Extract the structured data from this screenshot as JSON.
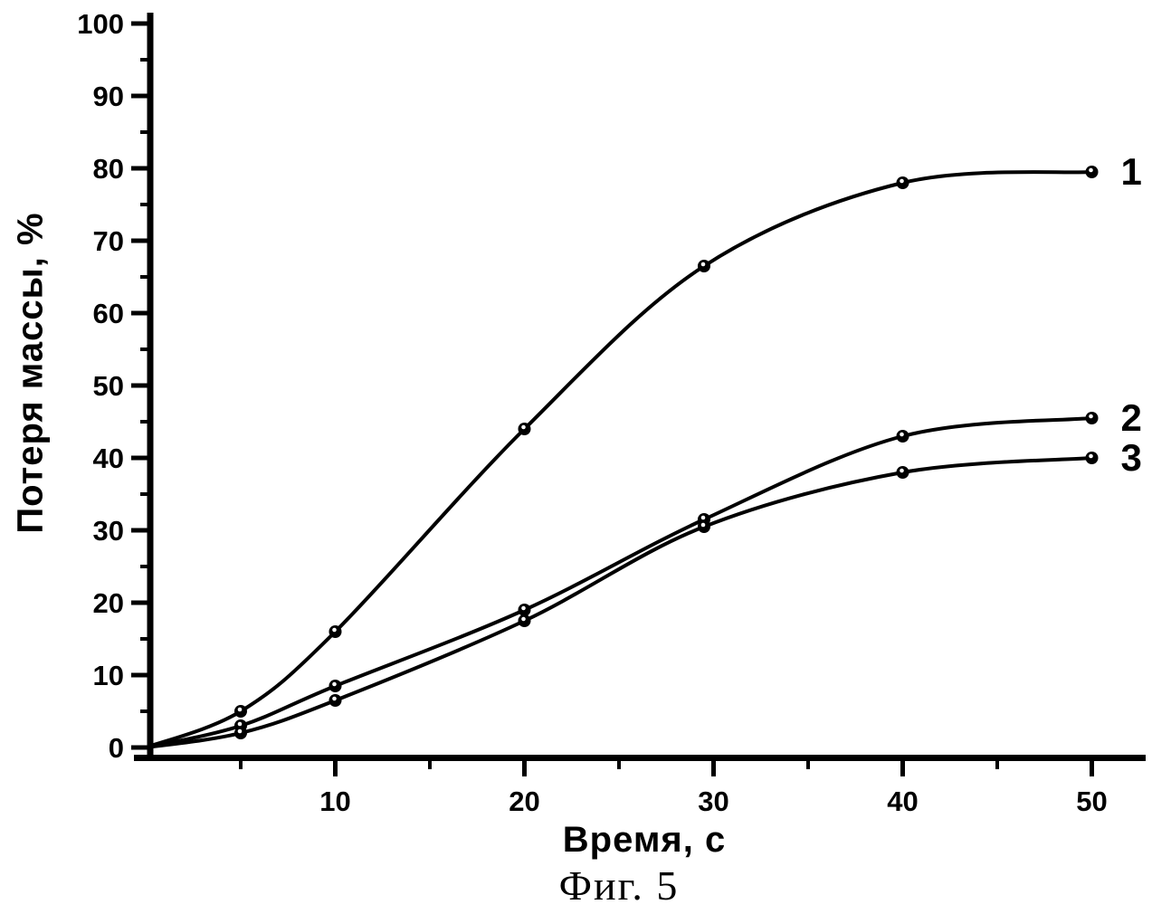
{
  "figure": {
    "caption": "Фиг. 5"
  },
  "chart_data": {
    "type": "line",
    "title": "",
    "xlabel": "Время, с",
    "ylabel": "Потеря массы, %",
    "xlim": [
      0,
      52.8
    ],
    "ylim": [
      0,
      100
    ],
    "x_major_ticks": [
      10,
      20,
      30,
      40,
      50
    ],
    "x_minor_ticks": [
      5,
      15,
      25,
      35,
      45
    ],
    "y_major_ticks": [
      0,
      10,
      20,
      30,
      40,
      50,
      60,
      70,
      80,
      90,
      100
    ],
    "y_minor_ticks": [
      5,
      15,
      25,
      35,
      45,
      55,
      65,
      75,
      85,
      95
    ],
    "grid": false,
    "legend_position": "end-of-line-labels",
    "x": [
      0,
      5,
      10,
      20,
      29.5,
      40,
      50
    ],
    "series": [
      {
        "name": "1",
        "values": [
          0,
          5,
          16,
          44,
          66.5,
          78,
          79.5
        ]
      },
      {
        "name": "2",
        "values": [
          0,
          3,
          8.5,
          19,
          31.5,
          43,
          45.5
        ]
      },
      {
        "name": "3",
        "values": [
          0,
          2,
          6.5,
          17.5,
          30.5,
          38,
          40
        ]
      }
    ],
    "marker": "filled-circle-white-dot",
    "line_color": "#000000",
    "background_color": "#ffffff"
  }
}
